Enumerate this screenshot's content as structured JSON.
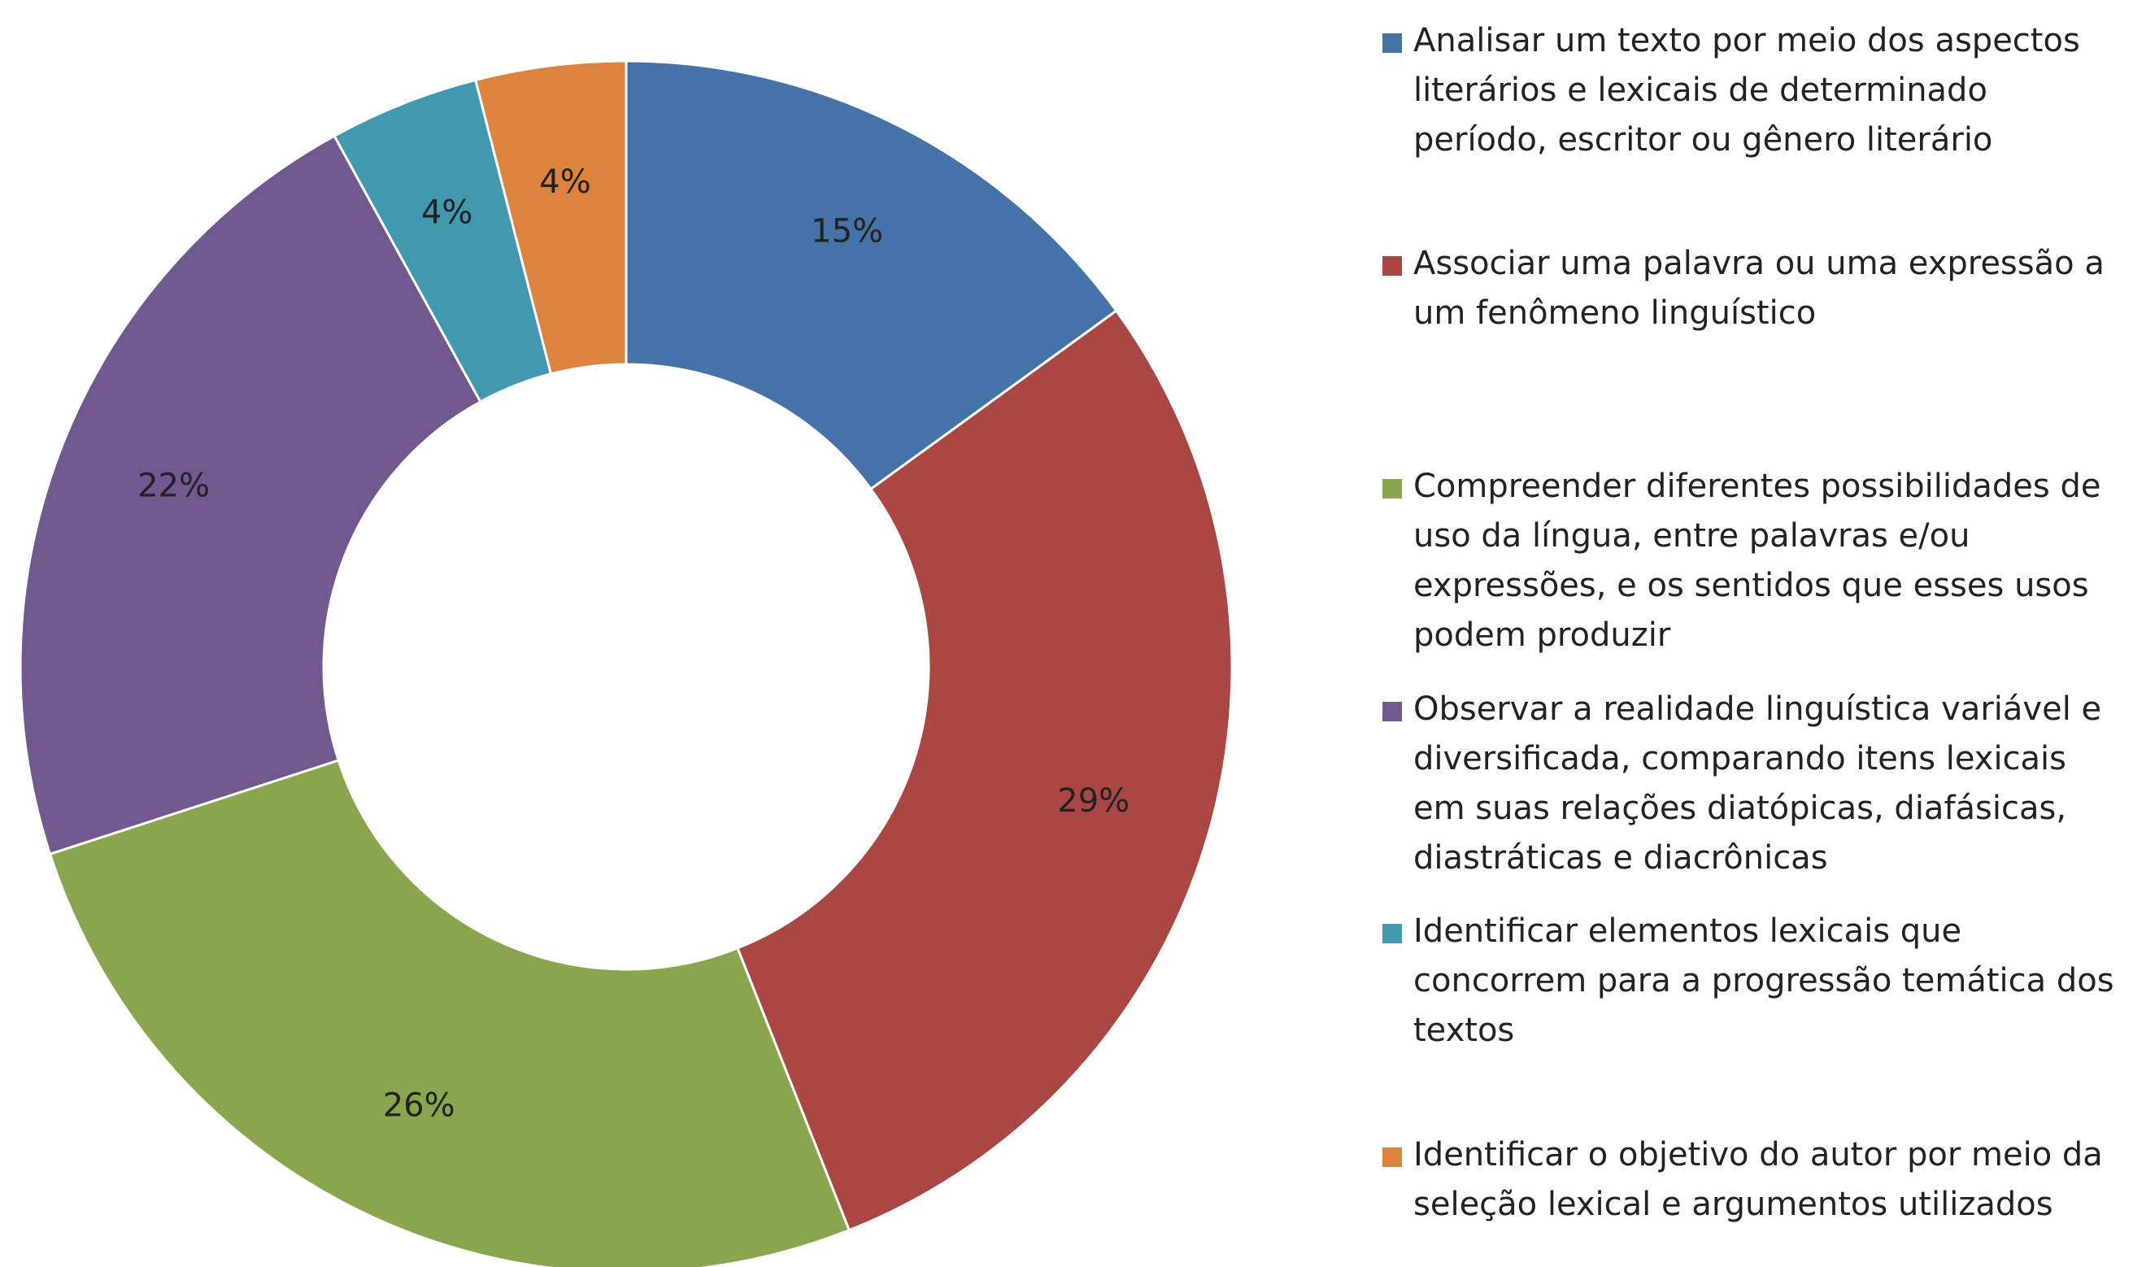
{
  "chart_data": {
    "type": "donut",
    "categories": [
      "Analisar um texto por meio dos aspectos literários e lexicais de determinado período, escritor ou gênero literário",
      "Associar uma palavra ou uma expressão a um fenômeno linguístico",
      "Compreender diferentes possibilidades de uso da língua, entre palavras e/ou expressões, e os sentidos que esses usos podem produzir",
      "Observar a realidade linguística variável e diversificada, comparando itens lexicais em suas relações diatópicas, diafásicas, diastráticas e diacrônicas",
      "Identificar elementos lexicais que concorrem para a progressão temática dos textos",
      "Identificar o objetivo do autor por meio da seleção lexical e argumentos utilizados"
    ],
    "values": [
      15,
      29,
      26,
      22,
      4,
      4
    ],
    "value_labels": [
      "15%",
      "29%",
      "26%",
      "22%",
      "4%",
      "4%"
    ],
    "colors": [
      "#4572a7",
      "#aa4643",
      "#89a54e",
      "#71588f",
      "#4198af",
      "#db843d"
    ],
    "legend": "right"
  }
}
